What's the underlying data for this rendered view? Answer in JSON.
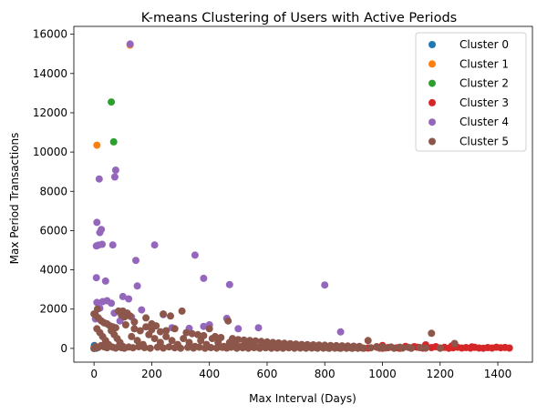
{
  "chart_data": {
    "type": "scatter",
    "title": "K-means Clustering of Users with Active Periods",
    "xlabel": "Max Interval (Days)",
    "ylabel": "Max Period Transactions",
    "xlim": [
      -70,
      1520
    ],
    "ylim": [
      -700,
      16400
    ],
    "xticks": [
      0,
      200,
      400,
      600,
      800,
      1000,
      1200,
      1400
    ],
    "yticks": [
      0,
      2000,
      4000,
      6000,
      8000,
      10000,
      12000,
      14000,
      16000
    ],
    "grid": false,
    "legend_position": "top-right",
    "series": [
      {
        "name": "Cluster 0",
        "color": "#1f77b4",
        "points": [
          [
            0,
            0
          ],
          [
            2,
            30
          ],
          [
            5,
            80
          ],
          [
            1,
            150
          ],
          [
            8,
            10
          ],
          [
            3,
            60
          ]
        ]
      },
      {
        "name": "Cluster 1",
        "color": "#ff7f0e",
        "points": [
          [
            125,
            15450
          ],
          [
            10,
            10350
          ]
        ]
      },
      {
        "name": "Cluster 2",
        "color": "#2ca02c",
        "points": [
          [
            60,
            12550
          ],
          [
            68,
            10520
          ]
        ]
      },
      {
        "name": "Cluster 3",
        "color": "#d62728",
        "points": [
          [
            950,
            20
          ],
          [
            980,
            60
          ],
          [
            1000,
            10
          ],
          [
            1020,
            40
          ],
          [
            1050,
            30
          ],
          [
            1080,
            100
          ],
          [
            1100,
            20
          ],
          [
            1120,
            60
          ],
          [
            1140,
            15
          ],
          [
            1150,
            180
          ],
          [
            1170,
            40
          ],
          [
            1185,
            90
          ],
          [
            1200,
            20
          ],
          [
            1215,
            50
          ],
          [
            1230,
            10
          ],
          [
            1245,
            30
          ],
          [
            1260,
            60
          ],
          [
            1275,
            20
          ],
          [
            1290,
            40
          ],
          [
            1305,
            15
          ],
          [
            1320,
            50
          ],
          [
            1335,
            20
          ],
          [
            1350,
            10
          ],
          [
            1365,
            40
          ],
          [
            1380,
            20
          ],
          [
            1395,
            60
          ],
          [
            1410,
            30
          ],
          [
            1425,
            45
          ],
          [
            1440,
            20
          ],
          [
            1000,
            150
          ],
          [
            1060,
            5
          ],
          [
            1110,
            90
          ],
          [
            1240,
            120
          ],
          [
            1310,
            80
          ]
        ]
      },
      {
        "name": "Cluster 4",
        "color": "#9467bd",
        "points": [
          [
            125,
            15500
          ],
          [
            75,
            9080
          ],
          [
            72,
            8730
          ],
          [
            18,
            8630
          ],
          [
            10,
            6420
          ],
          [
            25,
            6050
          ],
          [
            20,
            5900
          ],
          [
            65,
            5270
          ],
          [
            15,
            5260
          ],
          [
            8,
            5220
          ],
          [
            28,
            5300
          ],
          [
            210,
            5270
          ],
          [
            350,
            4750
          ],
          [
            145,
            4480
          ],
          [
            380,
            3570
          ],
          [
            8,
            3600
          ],
          [
            470,
            3250
          ],
          [
            150,
            3180
          ],
          [
            800,
            3230
          ],
          [
            40,
            3430
          ],
          [
            100,
            2640
          ],
          [
            120,
            2520
          ],
          [
            165,
            1960
          ],
          [
            240,
            1720
          ],
          [
            10,
            2340
          ],
          [
            30,
            2380
          ],
          [
            45,
            2430
          ],
          [
            60,
            2300
          ],
          [
            20,
            2050
          ],
          [
            270,
            1050
          ],
          [
            330,
            1020
          ],
          [
            380,
            1120
          ],
          [
            400,
            1200
          ],
          [
            460,
            1530
          ],
          [
            500,
            1000
          ],
          [
            570,
            1050
          ],
          [
            855,
            840
          ],
          [
            5,
            1500
          ],
          [
            70,
            1800
          ],
          [
            90,
            1400
          ],
          [
            130,
            1600
          ]
        ]
      },
      {
        "name": "Cluster 5",
        "color": "#8c564b",
        "points": [
          [
            5,
            1700
          ],
          [
            15,
            1550
          ],
          [
            25,
            1400
          ],
          [
            35,
            1300
          ],
          [
            45,
            1250
          ],
          [
            55,
            1150
          ],
          [
            65,
            1100
          ],
          [
            75,
            1050
          ],
          [
            85,
            1900
          ],
          [
            95,
            1700
          ],
          [
            105,
            1600
          ],
          [
            115,
            1800
          ],
          [
            125,
            1650
          ],
          [
            140,
            1000
          ],
          [
            160,
            900
          ],
          [
            180,
            1100
          ],
          [
            200,
            950
          ],
          [
            215,
            1150
          ],
          [
            230,
            850
          ],
          [
            250,
            900
          ],
          [
            265,
            1650
          ],
          [
            280,
            1000
          ],
          [
            305,
            1900
          ],
          [
            320,
            800
          ],
          [
            340,
            750
          ],
          [
            360,
            700
          ],
          [
            380,
            650
          ],
          [
            400,
            1000
          ],
          [
            420,
            600
          ],
          [
            440,
            550
          ],
          [
            465,
            1400
          ],
          [
            480,
            500
          ],
          [
            500,
            450
          ],
          [
            520,
            420
          ],
          [
            540,
            400
          ],
          [
            560,
            380
          ],
          [
            580,
            350
          ],
          [
            600,
            330
          ],
          [
            620,
            300
          ],
          [
            640,
            280
          ],
          [
            660,
            260
          ],
          [
            680,
            240
          ],
          [
            700,
            220
          ],
          [
            720,
            200
          ],
          [
            740,
            190
          ],
          [
            760,
            180
          ],
          [
            780,
            170
          ],
          [
            800,
            160
          ],
          [
            820,
            150
          ],
          [
            840,
            140
          ],
          [
            860,
            130
          ],
          [
            880,
            120
          ],
          [
            900,
            110
          ],
          [
            920,
            100
          ],
          [
            950,
            400
          ],
          [
            980,
            90
          ],
          [
            1000,
            80
          ],
          [
            1030,
            70
          ],
          [
            1060,
            60
          ],
          [
            1090,
            50
          ],
          [
            1130,
            40
          ],
          [
            1170,
            770
          ],
          [
            1250,
            250
          ],
          [
            10,
            1000
          ],
          [
            20,
            800
          ],
          [
            30,
            600
          ],
          [
            40,
            400
          ],
          [
            50,
            200
          ],
          [
            60,
            900
          ],
          [
            70,
            700
          ],
          [
            80,
            500
          ],
          [
            90,
            300
          ],
          [
            100,
            100
          ],
          [
            110,
            1200
          ],
          [
            130,
            600
          ],
          [
            150,
            400
          ],
          [
            170,
            200
          ],
          [
            190,
            700
          ],
          [
            210,
            500
          ],
          [
            230,
            300
          ],
          [
            250,
            600
          ],
          [
            270,
            400
          ],
          [
            290,
            200
          ],
          [
            310,
            500
          ],
          [
            330,
            300
          ],
          [
            350,
            100
          ],
          [
            370,
            400
          ],
          [
            390,
            200
          ],
          [
            410,
            500
          ],
          [
            430,
            300
          ],
          [
            450,
            100
          ],
          [
            470,
            300
          ],
          [
            490,
            200
          ],
          [
            510,
            100
          ],
          [
            530,
            250
          ],
          [
            550,
            150
          ],
          [
            570,
            50
          ],
          [
            590,
            200
          ],
          [
            610,
            100
          ],
          [
            630,
            150
          ],
          [
            650,
            50
          ],
          [
            670,
            120
          ],
          [
            690,
            80
          ],
          [
            710,
            100
          ],
          [
            730,
            50
          ],
          [
            750,
            90
          ],
          [
            770,
            40
          ],
          [
            790,
            70
          ],
          [
            810,
            30
          ],
          [
            830,
            60
          ],
          [
            850,
            20
          ],
          [
            870,
            50
          ],
          [
            890,
            30
          ],
          [
            910,
            40
          ],
          [
            930,
            20
          ],
          [
            960,
            30
          ],
          [
            990,
            15
          ],
          [
            1010,
            25
          ],
          [
            1040,
            10
          ],
          [
            1070,
            20
          ],
          [
            1100,
            10
          ],
          [
            1150,
            15
          ],
          [
            1200,
            10
          ],
          [
            0,
            0
          ],
          [
            5,
            100
          ],
          [
            15,
            50
          ],
          [
            25,
            150
          ],
          [
            35,
            80
          ],
          [
            45,
            30
          ],
          [
            55,
            120
          ],
          [
            65,
            60
          ],
          [
            75,
            20
          ],
          [
            85,
            90
          ],
          [
            95,
            40
          ],
          [
            105,
            10
          ],
          [
            120,
            70
          ],
          [
            135,
            30
          ],
          [
            155,
            90
          ],
          [
            175,
            40
          ],
          [
            195,
            10
          ],
          [
            220,
            60
          ],
          [
            240,
            20
          ],
          [
            260,
            80
          ],
          [
            280,
            30
          ],
          [
            300,
            10
          ],
          [
            325,
            50
          ],
          [
            345,
            20
          ],
          [
            365,
            60
          ],
          [
            385,
            10
          ],
          [
            405,
            40
          ],
          [
            425,
            15
          ],
          [
            445,
            50
          ],
          [
            460,
            20
          ],
          [
            475,
            60
          ],
          [
            495,
            10
          ],
          [
            515,
            30
          ],
          [
            535,
            10
          ],
          [
            555,
            40
          ],
          [
            575,
            10
          ],
          [
            595,
            30
          ],
          [
            615,
            10
          ],
          [
            635,
            20
          ],
          [
            655,
            10
          ],
          [
            675,
            30
          ],
          [
            695,
            10
          ],
          [
            715,
            20
          ],
          [
            735,
            10
          ],
          [
            755,
            20
          ],
          [
            775,
            10
          ],
          [
            795,
            15
          ],
          [
            815,
            5
          ],
          [
            835,
            15
          ],
          [
            855,
            5
          ],
          [
            875,
            10
          ],
          [
            895,
            5
          ],
          [
            915,
            10
          ],
          [
            935,
            5
          ],
          [
            0,
            1750
          ],
          [
            12,
            2000
          ],
          [
            100,
            1900
          ],
          [
            240,
            1750
          ],
          [
            180,
            1550
          ],
          [
            140,
            1350
          ],
          [
            200,
            1250
          ]
        ]
      }
    ]
  }
}
